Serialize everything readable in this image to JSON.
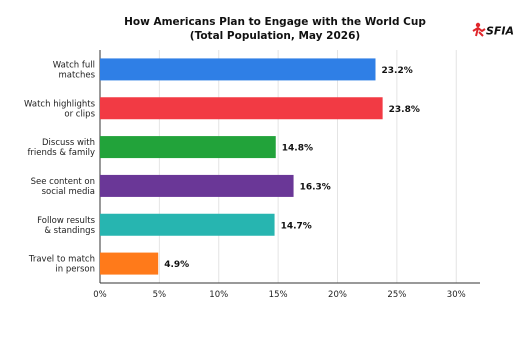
{
  "chart_data": {
    "type": "bar",
    "orientation": "horizontal",
    "title": "How Americans Plan to Engage with the World Cup",
    "subtitle": "(Total Population, May 2026)",
    "xlabel": "",
    "ylabel": "",
    "xlim": [
      0,
      32
    ],
    "ticks": [
      0,
      5,
      10,
      15,
      20,
      25,
      30
    ],
    "tick_labels": [
      "0%",
      "5%",
      "10%",
      "15%",
      "20%",
      "25%",
      "30%"
    ],
    "grid": true,
    "categories": [
      [
        "Watch full",
        "matches"
      ],
      [
        "Watch highlights",
        "or clips"
      ],
      [
        "Discuss with",
        "friends & family"
      ],
      [
        "See content on",
        "social media"
      ],
      [
        "Follow results",
        "& standings"
      ],
      [
        "Travel to match",
        "in person"
      ]
    ],
    "values": [
      23.2,
      23.8,
      14.8,
      16.3,
      14.7,
      4.9
    ],
    "value_labels": [
      "23.2%",
      "23.8%",
      "14.8%",
      "16.3%",
      "14.7%",
      "4.9%"
    ],
    "colors": [
      "#2f7fe6",
      "#f23a44",
      "#22a33a",
      "#6a3797",
      "#27b5b0",
      "#ff7a1a"
    ]
  },
  "logo": {
    "text": "SFIA",
    "accent": "#e0262b"
  }
}
